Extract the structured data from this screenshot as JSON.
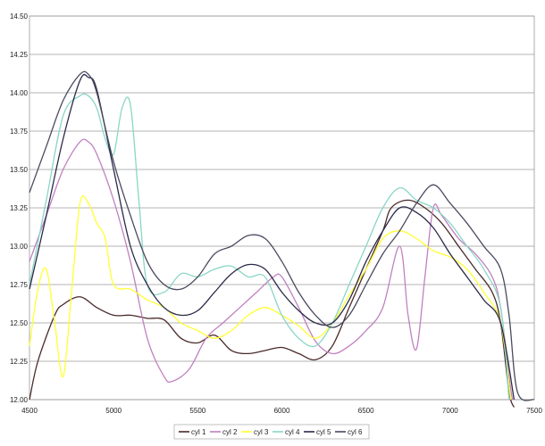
{
  "chart_data": {
    "type": "line",
    "title": "",
    "xlabel": "",
    "ylabel": "",
    "xlim": [
      4500,
      7500
    ],
    "ylim": [
      12.0,
      14.5
    ],
    "x_ticks": [
      4500,
      5000,
      5500,
      6000,
      6500,
      7000,
      7500
    ],
    "y_ticks": [
      12.0,
      12.25,
      12.5,
      12.75,
      13.0,
      13.25,
      13.5,
      13.75,
      14.0,
      14.25,
      14.5
    ],
    "x_tick_labels": [
      "4500",
      "5000",
      "5500",
      "6000",
      "6500",
      "7000",
      "7500"
    ],
    "y_tick_labels": [
      "12.00",
      "12.25",
      "12.50",
      "12.75",
      "13.00",
      "13.25",
      "13.50",
      "13.75",
      "14.00",
      "14.25",
      "14.50"
    ],
    "grid": "horizontal",
    "legend_position": "bottom",
    "series": [
      {
        "name": "cyl 1",
        "color": "#4a2a2a",
        "points": [
          [
            4500,
            12.0
          ],
          [
            4550,
            12.25
          ],
          [
            4650,
            12.55
          ],
          [
            4700,
            12.62
          ],
          [
            4800,
            12.67
          ],
          [
            4900,
            12.6
          ],
          [
            5000,
            12.55
          ],
          [
            5100,
            12.55
          ],
          [
            5200,
            12.53
          ],
          [
            5300,
            12.52
          ],
          [
            5400,
            12.4
          ],
          [
            5500,
            12.37
          ],
          [
            5600,
            12.42
          ],
          [
            5700,
            12.32
          ],
          [
            5800,
            12.3
          ],
          [
            5900,
            12.32
          ],
          [
            6000,
            12.34
          ],
          [
            6100,
            12.3
          ],
          [
            6200,
            12.26
          ],
          [
            6300,
            12.35
          ],
          [
            6400,
            12.6
          ],
          [
            6500,
            12.85
          ],
          [
            6600,
            13.1
          ],
          [
            6650,
            13.25
          ],
          [
            6750,
            13.3
          ],
          [
            6850,
            13.25
          ],
          [
            6950,
            13.15
          ],
          [
            7050,
            13.0
          ],
          [
            7150,
            12.85
          ],
          [
            7250,
            12.7
          ],
          [
            7300,
            12.5
          ],
          [
            7350,
            12.05
          ],
          [
            7380,
            11.95
          ]
        ]
      },
      {
        "name": "cyl 2",
        "color": "#c080c0",
        "points": [
          [
            4500,
            12.9
          ],
          [
            4600,
            13.2
          ],
          [
            4700,
            13.5
          ],
          [
            4800,
            13.68
          ],
          [
            4850,
            13.68
          ],
          [
            4900,
            13.6
          ],
          [
            5000,
            13.3
          ],
          [
            5100,
            12.9
          ],
          [
            5200,
            12.4
          ],
          [
            5300,
            12.15
          ],
          [
            5350,
            12.12
          ],
          [
            5450,
            12.2
          ],
          [
            5550,
            12.4
          ],
          [
            5650,
            12.5
          ],
          [
            5750,
            12.6
          ],
          [
            5850,
            12.7
          ],
          [
            5950,
            12.8
          ],
          [
            6000,
            12.8
          ],
          [
            6100,
            12.6
          ],
          [
            6200,
            12.38
          ],
          [
            6300,
            12.3
          ],
          [
            6400,
            12.35
          ],
          [
            6500,
            12.45
          ],
          [
            6600,
            12.6
          ],
          [
            6700,
            13.0
          ],
          [
            6750,
            12.55
          ],
          [
            6800,
            12.33
          ],
          [
            6850,
            12.8
          ],
          [
            6900,
            13.25
          ],
          [
            6950,
            13.2
          ],
          [
            7050,
            13.05
          ],
          [
            7150,
            12.95
          ],
          [
            7250,
            12.8
          ],
          [
            7300,
            12.6
          ],
          [
            7350,
            12.15
          ],
          [
            7370,
            12.0
          ]
        ]
      },
      {
        "name": "cyl 3",
        "color": "#ffff33",
        "points": [
          [
            4500,
            12.35
          ],
          [
            4550,
            12.72
          ],
          [
            4600,
            12.85
          ],
          [
            4650,
            12.5
          ],
          [
            4700,
            12.15
          ],
          [
            4750,
            12.7
          ],
          [
            4800,
            13.28
          ],
          [
            4850,
            13.28
          ],
          [
            4900,
            13.15
          ],
          [
            4950,
            13.05
          ],
          [
            5000,
            12.75
          ],
          [
            5100,
            12.72
          ],
          [
            5200,
            12.65
          ],
          [
            5300,
            12.6
          ],
          [
            5400,
            12.5
          ],
          [
            5500,
            12.45
          ],
          [
            5600,
            12.4
          ],
          [
            5700,
            12.45
          ],
          [
            5800,
            12.55
          ],
          [
            5900,
            12.6
          ],
          [
            6000,
            12.55
          ],
          [
            6100,
            12.48
          ],
          [
            6200,
            12.4
          ],
          [
            6300,
            12.5
          ],
          [
            6400,
            12.68
          ],
          [
            6500,
            12.85
          ],
          [
            6600,
            13.05
          ],
          [
            6700,
            13.1
          ],
          [
            6800,
            13.05
          ],
          [
            6900,
            12.97
          ],
          [
            7000,
            12.93
          ],
          [
            7100,
            12.85
          ],
          [
            7200,
            12.7
          ],
          [
            7300,
            12.5
          ],
          [
            7360,
            12.0
          ]
        ]
      },
      {
        "name": "cyl 4",
        "color": "#8ad6c6",
        "points": [
          [
            4500,
            12.75
          ],
          [
            4600,
            13.3
          ],
          [
            4700,
            13.85
          ],
          [
            4800,
            13.98
          ],
          [
            4850,
            13.98
          ],
          [
            4900,
            13.9
          ],
          [
            4950,
            13.7
          ],
          [
            5000,
            13.6
          ],
          [
            5050,
            13.9
          ],
          [
            5100,
            13.92
          ],
          [
            5150,
            13.3
          ],
          [
            5200,
            12.75
          ],
          [
            5300,
            12.7
          ],
          [
            5400,
            12.82
          ],
          [
            5500,
            12.8
          ],
          [
            5600,
            12.85
          ],
          [
            5700,
            12.87
          ],
          [
            5800,
            12.8
          ],
          [
            5900,
            12.8
          ],
          [
            6000,
            12.55
          ],
          [
            6100,
            12.4
          ],
          [
            6200,
            12.35
          ],
          [
            6300,
            12.5
          ],
          [
            6400,
            12.75
          ],
          [
            6500,
            13.0
          ],
          [
            6600,
            13.25
          ],
          [
            6700,
            13.38
          ],
          [
            6800,
            13.3
          ],
          [
            6900,
            13.25
          ],
          [
            7000,
            13.15
          ],
          [
            7100,
            13.0
          ],
          [
            7200,
            12.85
          ],
          [
            7300,
            12.6
          ],
          [
            7350,
            12.0
          ]
        ]
      },
      {
        "name": "cyl 5",
        "color": "#2a2a4a",
        "points": [
          [
            4500,
            12.72
          ],
          [
            4600,
            13.2
          ],
          [
            4700,
            13.7
          ],
          [
            4800,
            14.08
          ],
          [
            4850,
            14.1
          ],
          [
            4900,
            14.02
          ],
          [
            5000,
            13.5
          ],
          [
            5100,
            13.0
          ],
          [
            5200,
            12.75
          ],
          [
            5300,
            12.6
          ],
          [
            5400,
            12.55
          ],
          [
            5500,
            12.58
          ],
          [
            5600,
            12.7
          ],
          [
            5700,
            12.82
          ],
          [
            5800,
            12.88
          ],
          [
            5900,
            12.85
          ],
          [
            6000,
            12.7
          ],
          [
            6100,
            12.58
          ],
          [
            6200,
            12.5
          ],
          [
            6300,
            12.5
          ],
          [
            6400,
            12.65
          ],
          [
            6500,
            12.9
          ],
          [
            6600,
            13.1
          ],
          [
            6700,
            13.25
          ],
          [
            6800,
            13.22
          ],
          [
            6900,
            13.12
          ],
          [
            7000,
            12.95
          ],
          [
            7100,
            12.8
          ],
          [
            7200,
            12.65
          ],
          [
            7300,
            12.5
          ],
          [
            7380,
            12.0
          ]
        ]
      },
      {
        "name": "cyl 6",
        "color": "#4a4a60",
        "points": [
          [
            4500,
            13.35
          ],
          [
            4600,
            13.65
          ],
          [
            4700,
            13.95
          ],
          [
            4800,
            14.12
          ],
          [
            4850,
            14.12
          ],
          [
            4900,
            14.0
          ],
          [
            5000,
            13.55
          ],
          [
            5100,
            13.2
          ],
          [
            5200,
            12.9
          ],
          [
            5300,
            12.75
          ],
          [
            5400,
            12.72
          ],
          [
            5500,
            12.8
          ],
          [
            5600,
            12.95
          ],
          [
            5700,
            13.0
          ],
          [
            5800,
            13.07
          ],
          [
            5900,
            13.05
          ],
          [
            6000,
            12.9
          ],
          [
            6100,
            12.7
          ],
          [
            6200,
            12.55
          ],
          [
            6300,
            12.47
          ],
          [
            6400,
            12.55
          ],
          [
            6500,
            12.75
          ],
          [
            6600,
            12.95
          ],
          [
            6700,
            13.1
          ],
          [
            6800,
            13.28
          ],
          [
            6900,
            13.4
          ],
          [
            7000,
            13.28
          ],
          [
            7100,
            13.15
          ],
          [
            7200,
            13.0
          ],
          [
            7300,
            12.85
          ],
          [
            7350,
            12.55
          ],
          [
            7400,
            12.05
          ],
          [
            7500,
            12.0
          ]
        ]
      }
    ]
  }
}
